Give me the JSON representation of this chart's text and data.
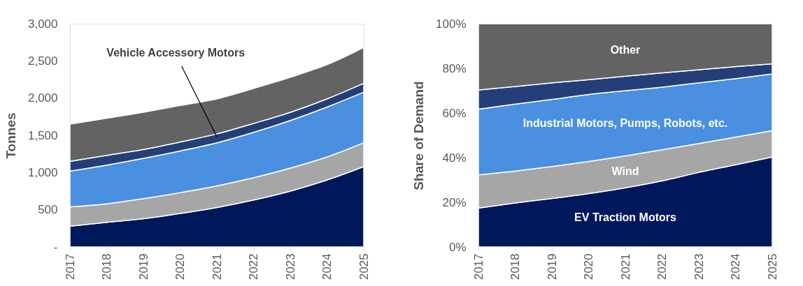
{
  "chart_data": [
    {
      "type": "area",
      "stacked": true,
      "ylabel": "Tonnes",
      "categories": [
        "2017",
        "2018",
        "2019",
        "2020",
        "2021",
        "2022",
        "2023",
        "2024",
        "2025"
      ],
      "ylim": [
        0,
        3000
      ],
      "yticks": [
        {
          "value": 0,
          "label": "-"
        },
        {
          "value": 500,
          "label": "500"
        },
        {
          "value": 1000,
          "label": "1,000"
        },
        {
          "value": 1500,
          "label": "1,500"
        },
        {
          "value": 2000,
          "label": "2,000"
        },
        {
          "value": 2500,
          "label": "2,500"
        },
        {
          "value": 3000,
          "label": "3,000"
        }
      ],
      "series": [
        {
          "color": "#00175c",
          "values": [
            280,
            330,
            380,
            450,
            530,
            630,
            750,
            900,
            1080
          ]
        },
        {
          "color": "#a6a6a6",
          "values": [
            260,
            250,
            270,
            280,
            290,
            300,
            310,
            310,
            320
          ]
        },
        {
          "color": "#4a8fe0",
          "values": [
            480,
            520,
            540,
            560,
            580,
            610,
            640,
            670,
            680
          ]
        },
        {
          "color": "#243f78",
          "values": [
            130,
            130,
            120,
            120,
            120,
            120,
            110,
            110,
            120
          ]
        },
        {
          "color": "#636363",
          "values": [
            500,
            500,
            500,
            490,
            470,
            470,
            470,
            460,
            480
          ]
        }
      ],
      "annotations": [
        {
          "text": "Vehicle Accessory Motors",
          "x": "2021",
          "y": 1480
        }
      ]
    },
    {
      "type": "area",
      "stacked": true,
      "ylabel": "Share of Demand",
      "categories": [
        "2017",
        "2018",
        "2019",
        "2020",
        "2021",
        "2022",
        "2023",
        "2024",
        "2025"
      ],
      "ylim": [
        0,
        100
      ],
      "yticks": [
        {
          "value": 0,
          "label": "0%"
        },
        {
          "value": 20,
          "label": "20%"
        },
        {
          "value": 40,
          "label": "40%"
        },
        {
          "value": 60,
          "label": "60%"
        },
        {
          "value": 80,
          "label": "80%"
        },
        {
          "value": 100,
          "label": "100%"
        }
      ],
      "series": [
        {
          "name": "EV Traction Motors",
          "color": "#00175c",
          "values": [
            17.4,
            19.7,
            21.7,
            23.9,
            26.5,
            29.6,
            33.4,
            36.8,
            40.3
          ]
        },
        {
          "name": "Wind",
          "color": "#a6a6a6",
          "values": [
            14.9,
            14.3,
            14.3,
            14.4,
            14.3,
            13.9,
            12.9,
            12.4,
            11.8
          ]
        },
        {
          "name": "Industrial Motors, Pumps, Robots, etc.",
          "color": "#4a8fe0",
          "values": [
            29.4,
            30.0,
            30.1,
            30.0,
            29.2,
            28.1,
            27.2,
            26.2,
            25.4
          ]
        },
        {
          "color": "#243f78",
          "values": [
            8.6,
            7.9,
            7.4,
            6.6,
            6.5,
            6.4,
            5.9,
            5.4,
            4.5
          ]
        },
        {
          "name": "Other",
          "color": "#636363",
          "values": [
            29.7,
            28.1,
            26.5,
            25.1,
            23.5,
            22.0,
            20.6,
            19.2,
            18.0
          ]
        }
      ]
    }
  ]
}
